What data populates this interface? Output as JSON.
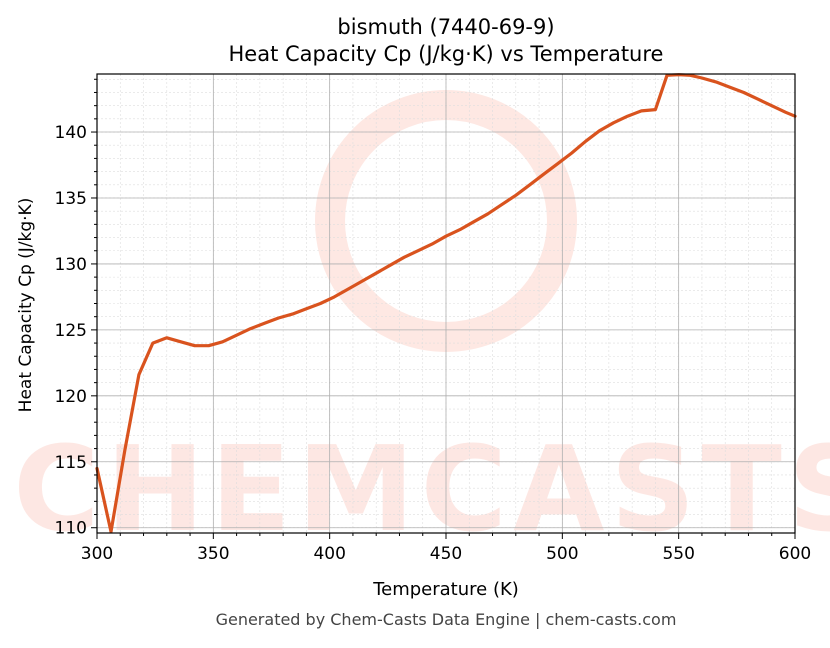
{
  "colors": {
    "line": "#d9531e",
    "grid_major": "#b0b0b0",
    "grid_minor": "#dddddd",
    "watermark": "#fde0da",
    "footer": "#444444"
  },
  "footer": "Generated by Chem-Casts Data Engine | chem-casts.com",
  "watermark": {
    "text": "CHEMCASTS"
  },
  "chart_data": {
    "type": "line",
    "title": "bismuth (7440-69-9)",
    "subtitle": "Heat Capacity Cp (J/kg·K) vs Temperature",
    "xlabel": "Temperature (K)",
    "ylabel": "Heat Capacity Cp (J/kg·K)",
    "xlim": [
      300,
      600
    ],
    "ylim": [
      109.6,
      144.4
    ],
    "xticks": [
      300,
      350,
      400,
      450,
      500,
      550,
      600
    ],
    "yticks": [
      110,
      115,
      120,
      125,
      130,
      135,
      140
    ],
    "grid": true,
    "series": [
      {
        "x": [
          300,
          306,
          312,
          318,
          324,
          330,
          336,
          342,
          348,
          354,
          360,
          366,
          372,
          378,
          384,
          390,
          396,
          402,
          408,
          414,
          420,
          426,
          432,
          438,
          444,
          450,
          456,
          462,
          468,
          474,
          480,
          486,
          492,
          498,
          504,
          510,
          516,
          522,
          528,
          534,
          540,
          545,
          550,
          555,
          560,
          566,
          572,
          578,
          584,
          590,
          596,
          600
        ],
        "y": [
          114.5,
          109.7,
          115.9,
          121.6,
          124.0,
          124.4,
          124.1,
          123.8,
          123.8,
          124.1,
          124.6,
          125.1,
          125.5,
          125.9,
          126.2,
          126.6,
          127.0,
          127.5,
          128.1,
          128.7,
          129.3,
          129.9,
          130.5,
          131.0,
          131.5,
          132.1,
          132.6,
          133.2,
          133.8,
          134.5,
          135.2,
          136.0,
          136.8,
          137.6,
          138.4,
          139.3,
          140.1,
          140.7,
          141.2,
          141.6,
          141.7,
          144.3,
          144.35,
          144.3,
          144.1,
          143.8,
          143.4,
          143.0,
          142.5,
          142.0,
          141.5,
          141.2
        ]
      }
    ]
  }
}
